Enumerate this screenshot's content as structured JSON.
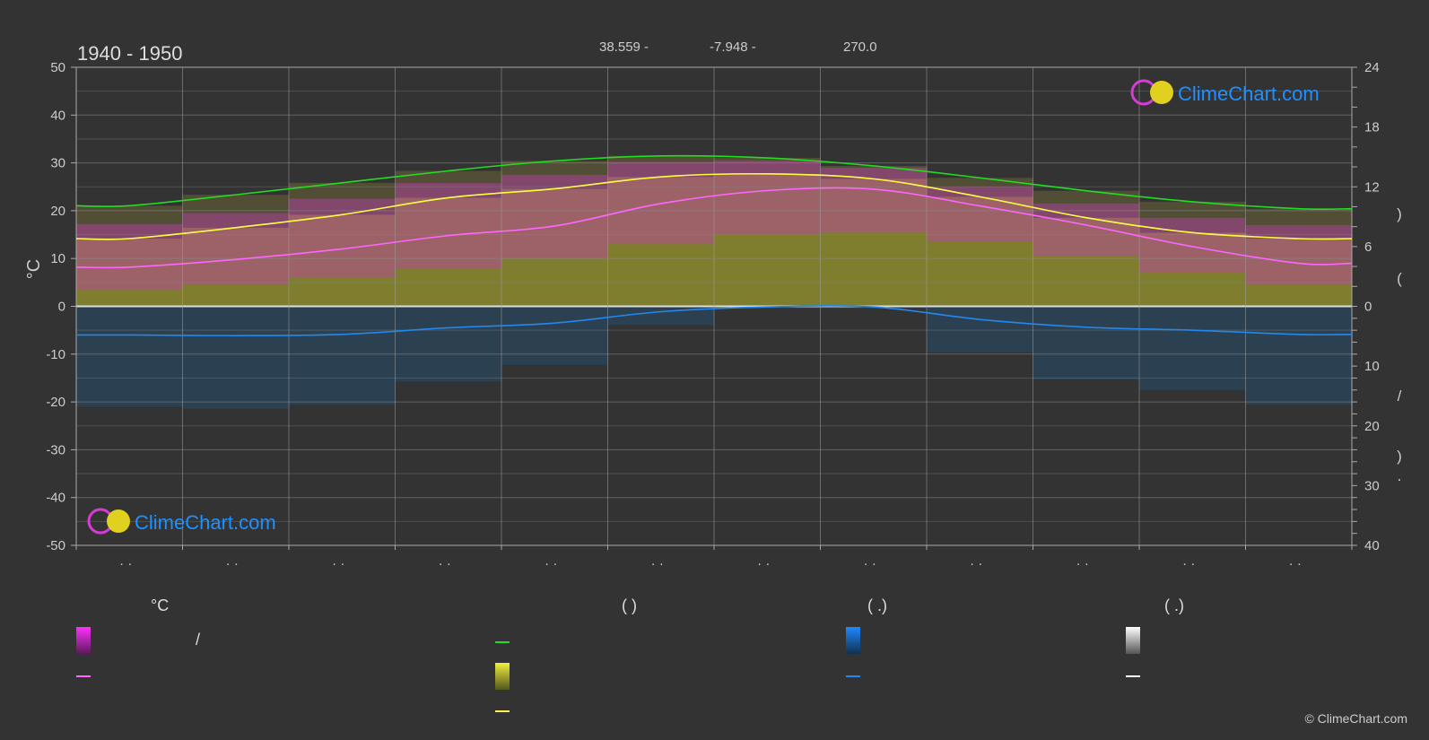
{
  "header": {
    "period": "1940 - 1950",
    "lat": "38.559 -",
    "lon": "-7.948 -",
    "elevation": "270.0"
  },
  "brand": {
    "logo_text": "ClimeChart.com",
    "copyright": "© ClimeChart.com",
    "colors": {
      "text": "#1e90ff",
      "ring": "#d63bd6",
      "sun": "#e0d020"
    }
  },
  "legend": {
    "col1_head": "°C",
    "col2_head": "(          )",
    "col3_head": "(   .)",
    "col4_head": "(   .)",
    "slash": "/",
    "colors": {
      "day_range": "#e020e0",
      "daily_mean": "#ff66ff",
      "daylight": "#22dd22",
      "sunshine_band": "#e8e840",
      "sunshine_mean": "#ffff44",
      "rain": "#1e7fe0",
      "rain_mean": "#2288ee",
      "snow": "#ffffff",
      "snow_mean": "#ffffff"
    }
  },
  "chart_data": {
    "type": "line",
    "ylabel_left": "°C",
    "ylim_left": [
      -50,
      50
    ],
    "yticks_left": [
      "50",
      "40",
      "30",
      "20",
      "10",
      "0",
      "-10",
      "-20",
      "-30",
      "-40",
      "-50"
    ],
    "ylim_right_upper": [
      0,
      24
    ],
    "yticks_right_upper": [
      "24",
      "18",
      "12",
      "6",
      "0"
    ],
    "ylim_right_lower": [
      0,
      40
    ],
    "yticks_right_lower": [
      "10",
      "20",
      "30",
      "40"
    ],
    "right_axis_glyphs": [
      ")",
      "(",
      "/",
      ")",
      "."
    ],
    "month_tick_labels": [
      "· ·",
      "· ·",
      "· ·",
      "· ·",
      "· ·",
      "· ·",
      "· ·",
      "· ·",
      "· ·",
      "· ·",
      "· ·",
      "· ·"
    ],
    "x_months": [
      1,
      2,
      3,
      4,
      5,
      6,
      7,
      8,
      9,
      10,
      11,
      12
    ],
    "grid": true,
    "series": [
      {
        "key": "daylight",
        "values": [
          10.1,
          11.2,
          12.4,
          13.6,
          14.6,
          15.1,
          14.9,
          14.1,
          12.9,
          11.6,
          10.5,
          9.8
        ]
      },
      {
        "key": "sunshine",
        "values": [
          6.8,
          7.9,
          9.2,
          10.9,
          11.8,
          13.0,
          13.3,
          12.8,
          11.0,
          8.9,
          7.4,
          6.8
        ]
      },
      {
        "key": "mean_temp",
        "values": [
          8.2,
          9.8,
          12.0,
          14.8,
          16.8,
          21.5,
          24.2,
          24.5,
          21.0,
          17.0,
          12.5,
          9.0
        ]
      },
      {
        "key": "max_temp",
        "values": [
          14.2,
          16.5,
          19.5,
          22.8,
          24.5,
          27.2,
          27.5,
          26.0,
          22.0,
          18.5,
          15.5,
          14.0
        ]
      },
      {
        "key": "min_temp",
        "values": [
          3.5,
          4.5,
          6.0,
          7.8,
          10.0,
          13.0,
          15.0,
          15.5,
          13.5,
          10.5,
          7.0,
          4.5
        ]
      },
      {
        "key": "precipitation",
        "values": [
          4.8,
          4.9,
          4.7,
          3.6,
          2.8,
          0.9,
          0.1,
          0.1,
          2.2,
          3.5,
          4.0,
          4.7
        ]
      }
    ]
  }
}
